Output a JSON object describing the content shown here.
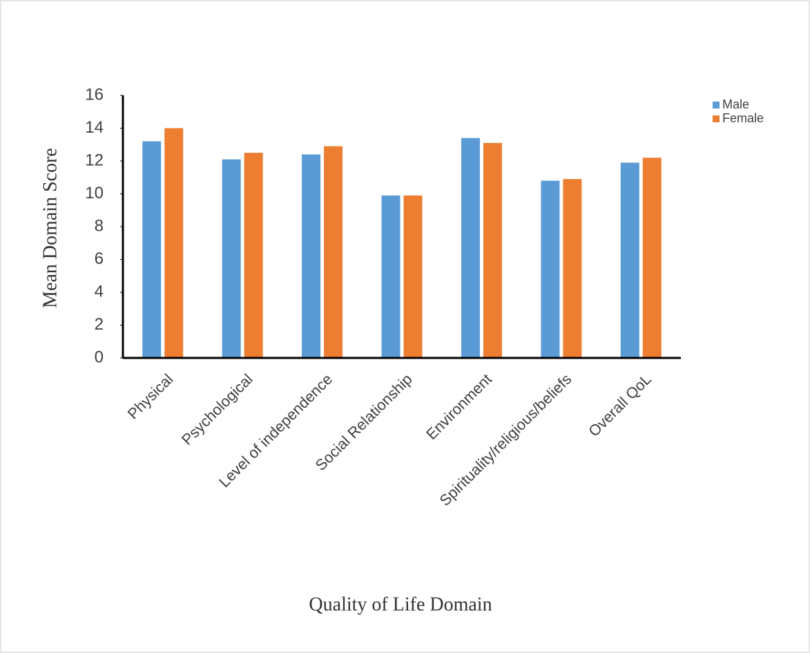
{
  "chart_data": {
    "type": "bar",
    "x_label": "Quality of Life Domain",
    "y_label": "Mean Domain Score",
    "categories": [
      "Physical",
      "Psychological",
      "Level of independence",
      "Social Relationship",
      "Environment",
      "Spirituality/religious/beliefs",
      "Overall QoL"
    ],
    "series": [
      {
        "name": "Male",
        "color": "#5b9bd5",
        "values": [
          13.2,
          12.1,
          12.4,
          9.9,
          13.4,
          10.8,
          11.9
        ]
      },
      {
        "name": "Female",
        "color": "#ed7d31",
        "values": [
          14.0,
          12.5,
          12.9,
          9.9,
          13.1,
          10.9,
          12.2
        ]
      }
    ],
    "ylim": [
      0,
      16
    ],
    "yticks": [
      0,
      2,
      4,
      6,
      8,
      10,
      12,
      14,
      16
    ],
    "grid": false,
    "legend": "top-right"
  }
}
